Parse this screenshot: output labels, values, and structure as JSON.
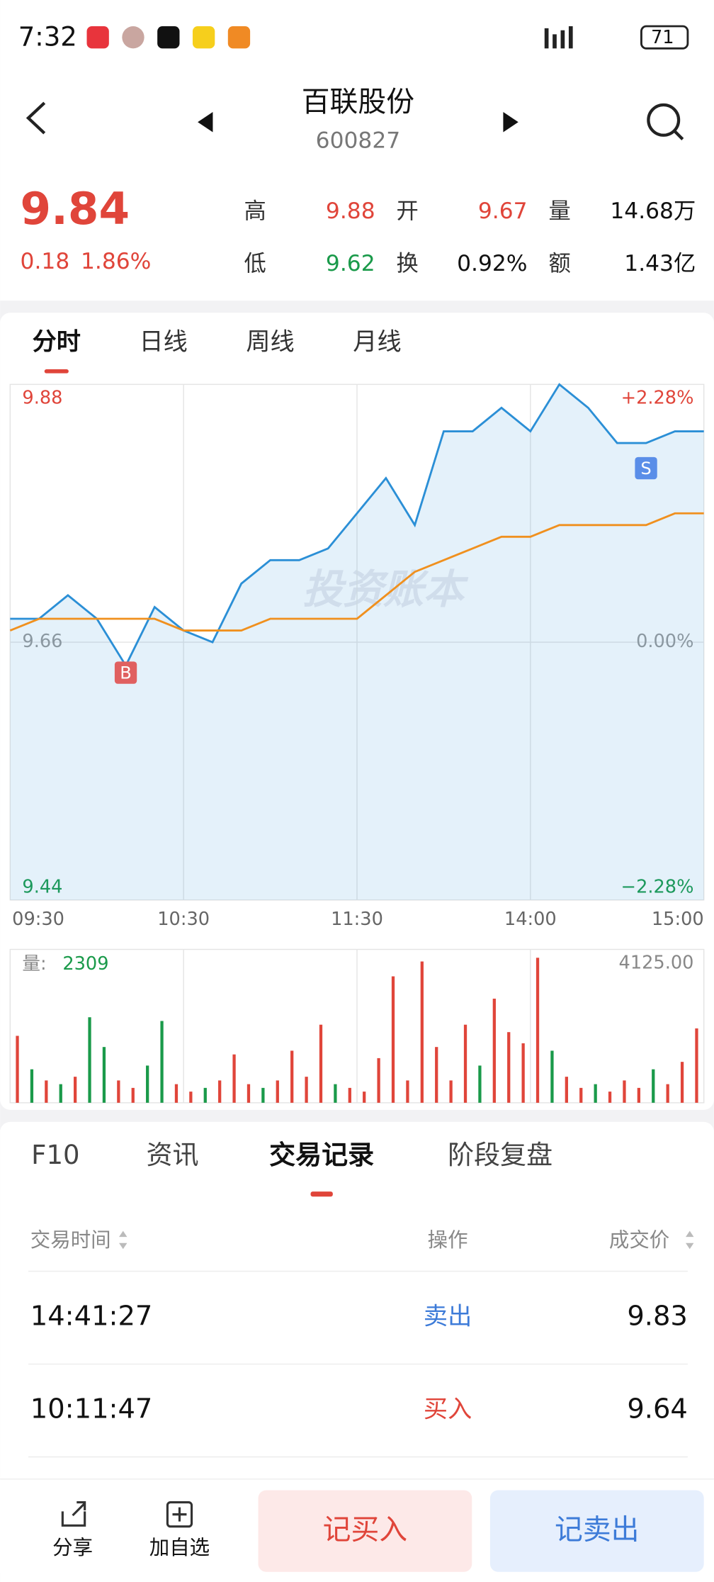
{
  "status_bar": {
    "time": "7:32",
    "battery": "71"
  },
  "header": {
    "title": "百联股份",
    "code": "600827"
  },
  "quote": {
    "price": "9.84",
    "change": "0.18",
    "change_pct": "1.86%",
    "stats": [
      {
        "label": "高",
        "value": "9.88",
        "color": "#e0453a"
      },
      {
        "label": "开",
        "value": "9.67",
        "color": "#e0453a"
      },
      {
        "label": "量",
        "value": "14.68万",
        "color": "#111111"
      },
      {
        "label": "低",
        "value": "9.62",
        "color": "#1a9a4a"
      },
      {
        "label": "换",
        "value": "0.92%",
        "color": "#111111"
      },
      {
        "label": "额",
        "value": "1.43亿",
        "color": "#111111"
      }
    ]
  },
  "chart_tabs": [
    "分时",
    "日线",
    "周线",
    "月线"
  ],
  "watermark": "投资账本",
  "chart_data": [
    {
      "type": "line",
      "x": [
        0,
        10,
        20,
        30,
        40,
        50,
        60,
        70,
        80,
        90,
        100,
        110,
        120,
        130,
        140,
        150,
        160,
        170,
        180,
        190,
        200,
        210,
        220,
        230,
        240
      ],
      "xlim": [
        0,
        240
      ],
      "xticks": [
        {
          "value": 0,
          "label": "09:30"
        },
        {
          "value": 60,
          "label": "10:30"
        },
        {
          "value": 120,
          "label": "11:30"
        },
        {
          "value": 180,
          "label": "14:00"
        },
        {
          "value": 240,
          "label": "15:00"
        }
      ],
      "ylim": [
        9.44,
        9.88
      ],
      "yticks": [
        9.44,
        9.66,
        9.88
      ],
      "y2lim": [
        -2.28,
        2.28
      ],
      "y2ticks": [
        {
          "value": -2.28,
          "label": "−2.28%"
        },
        {
          "value": 0,
          "label": "0.00%"
        },
        {
          "value": 2.28,
          "label": "+2.28%"
        }
      ],
      "grid": true,
      "series": [
        {
          "color": "#2b8fd6",
          "area": true,
          "values": [
            9.68,
            9.68,
            9.7,
            9.68,
            9.64,
            9.69,
            9.67,
            9.66,
            9.71,
            9.73,
            9.73,
            9.74,
            9.77,
            9.8,
            9.76,
            9.84,
            9.84,
            9.86,
            9.84,
            9.88,
            9.86,
            9.83,
            9.83,
            9.84,
            9.84
          ]
        },
        {
          "color": "#f0901e",
          "values": [
            9.67,
            9.68,
            9.68,
            9.68,
            9.68,
            9.68,
            9.67,
            9.67,
            9.67,
            9.68,
            9.68,
            9.68,
            9.68,
            9.7,
            9.72,
            9.73,
            9.74,
            9.75,
            9.75,
            9.76,
            9.76,
            9.76,
            9.76,
            9.77,
            9.77
          ]
        }
      ],
      "markers": [
        {
          "label": "B",
          "x": 40,
          "color": "#e06060"
        },
        {
          "label": "S",
          "x": 220,
          "color": "#5a8ee8"
        }
      ]
    },
    {
      "type": "bar",
      "label": "量:",
      "current": 2309,
      "xlim": [
        0,
        48
      ],
      "ylim": [
        0,
        4125
      ],
      "yticks": [
        {
          "value": 4125,
          "label": "4125.00"
        }
      ],
      "up_color": "#e0453a",
      "down_color": "#1a9a4a",
      "values": [
        1800,
        900,
        600,
        500,
        700,
        2300,
        1500,
        600,
        400,
        1000,
        2200,
        500,
        300,
        400,
        600,
        1300,
        500,
        400,
        600,
        1400,
        700,
        2100,
        500,
        400,
        300,
        1200,
        3400,
        600,
        3800,
        1500,
        600,
        2100,
        1000,
        2800,
        1900,
        1600,
        3900,
        1400,
        700,
        400,
        500,
        300,
        600,
        400,
        900,
        500,
        1100,
        2000
      ],
      "rising": [
        true,
        false,
        true,
        false,
        true,
        false,
        false,
        true,
        true,
        false,
        false,
        true,
        true,
        false,
        true,
        true,
        true,
        false,
        true,
        true,
        true,
        true,
        false,
        true,
        true,
        true,
        true,
        true,
        true,
        true,
        true,
        true,
        false,
        true,
        true,
        true,
        true,
        false,
        true,
        true,
        false,
        true,
        true,
        true,
        false,
        true,
        true,
        true
      ]
    }
  ],
  "info_tabs": [
    "F10",
    "资讯",
    "交易记录",
    "阶段复盘"
  ],
  "table": {
    "header": [
      "交易时间",
      "操作",
      "成交价"
    ],
    "rows": [
      [
        "14:41:27",
        "卖出",
        "9.83"
      ],
      [
        "10:11:47",
        "买入",
        "9.64"
      ]
    ]
  },
  "bottom_bar": {
    "share": "分享",
    "watch": "加自选",
    "buy": "记买入",
    "sell": "记卖出"
  }
}
